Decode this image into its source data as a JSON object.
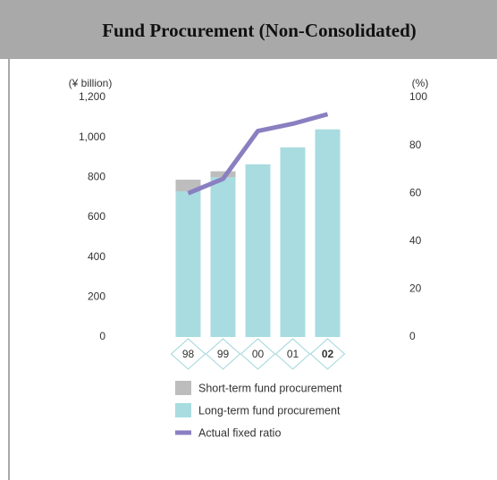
{
  "chart_data": {
    "type": "bar",
    "title": "Fund Procurement (Non-Consolidated)",
    "y_label": "(¥ billion)",
    "y2_label": "(%)",
    "categories": [
      "98",
      "99",
      "00",
      "01",
      "02"
    ],
    "series": [
      {
        "name": "Long-term fund procurement",
        "color": "#a8dce0",
        "values": [
          730,
          800,
          865,
          950,
          1040
        ]
      },
      {
        "name": "Short-term fund procurement",
        "color": "#bdbdbd",
        "values": [
          58,
          30,
          0,
          0,
          0
        ]
      },
      {
        "name": "Actual fixed ratio",
        "color": "#8a7fc0",
        "type": "line",
        "axis": "y2",
        "values": [
          60,
          66,
          86,
          89,
          93
        ]
      }
    ],
    "ylim": [
      0,
      1200
    ],
    "yticks": [
      0,
      200,
      400,
      600,
      800,
      {
        "value": 1000,
        "label": "1,000"
      },
      {
        "value": 1200,
        "label": "1,200"
      }
    ],
    "y2lim": [
      0,
      100
    ],
    "y2ticks": [
      0,
      20,
      40,
      60,
      80,
      100
    ]
  }
}
